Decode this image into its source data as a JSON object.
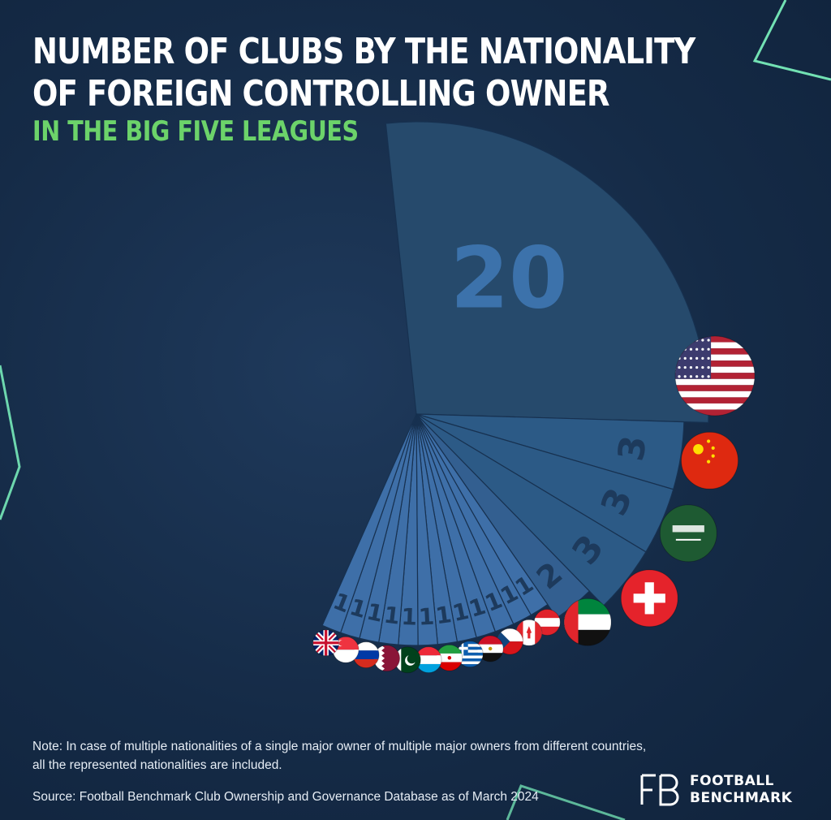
{
  "title": {
    "line1": "NUMBER OF CLUBS BY THE NATIONALITY",
    "line2": "OF FOREIGN CONTROLLING OWNER"
  },
  "subtitle": "IN THE BIG FIVE LEAGUES",
  "note_line1": "Note: In case of multiple nationalities of a single major owner of multiple major owners from different countries,",
  "note_line2": "all the represented nationalities are included.",
  "source": "Source: Football Benchmark Club Ownership and Governance Database as of March 2024",
  "logo": {
    "line1": "FOOTBALL",
    "line2": "BENCHMARK"
  },
  "colors": {
    "background": "#152b47",
    "slice_large": "#264a6c",
    "slice_mid": "#2c5a86",
    "slice_small": "#3e6fa8",
    "value_text": "#1d3a5c",
    "value_text_large": "#3c72ab",
    "subtitle": "#6cd36a",
    "neon": "#7df6c0"
  },
  "chart_data": {
    "type": "pie",
    "title": "NUMBER OF CLUBS BY THE NATIONALITY OF FOREIGN CONTROLLING OWNER",
    "subtitle": "IN THE BIG FIVE LEAGUES",
    "slices": [
      {
        "label": "United States",
        "value": 20,
        "icon": "flag-usa"
      },
      {
        "label": "China",
        "value": 3,
        "icon": "flag-china"
      },
      {
        "label": "Saudi Arabia",
        "value": 3,
        "icon": "flag-saudi-arabia"
      },
      {
        "label": "Switzerland",
        "value": 3,
        "icon": "flag-switzerland"
      },
      {
        "label": "United Arab Emirates",
        "value": 2,
        "icon": "flag-uae"
      },
      {
        "label": "Austria",
        "value": 1,
        "icon": "flag-austria"
      },
      {
        "label": "Canada",
        "value": 1,
        "icon": "flag-canada"
      },
      {
        "label": "Czech Republic",
        "value": 1,
        "icon": "flag-czech-republic"
      },
      {
        "label": "Egypt",
        "value": 1,
        "icon": "flag-egypt"
      },
      {
        "label": "Greece",
        "value": 1,
        "icon": "flag-greece"
      },
      {
        "label": "Iran",
        "value": 1,
        "icon": "flag-iran"
      },
      {
        "label": "Luxembourg",
        "value": 1,
        "icon": "flag-luxembourg"
      },
      {
        "label": "Pakistan",
        "value": 1,
        "icon": "flag-pakistan"
      },
      {
        "label": "Qatar",
        "value": 1,
        "icon": "flag-qatar"
      },
      {
        "label": "Russia",
        "value": 1,
        "icon": "flag-russia"
      },
      {
        "label": "Singapore",
        "value": 1,
        "icon": "flag-singapore"
      },
      {
        "label": "United Kingdom",
        "value": 1,
        "icon": "flag-united-kingdom"
      }
    ]
  }
}
